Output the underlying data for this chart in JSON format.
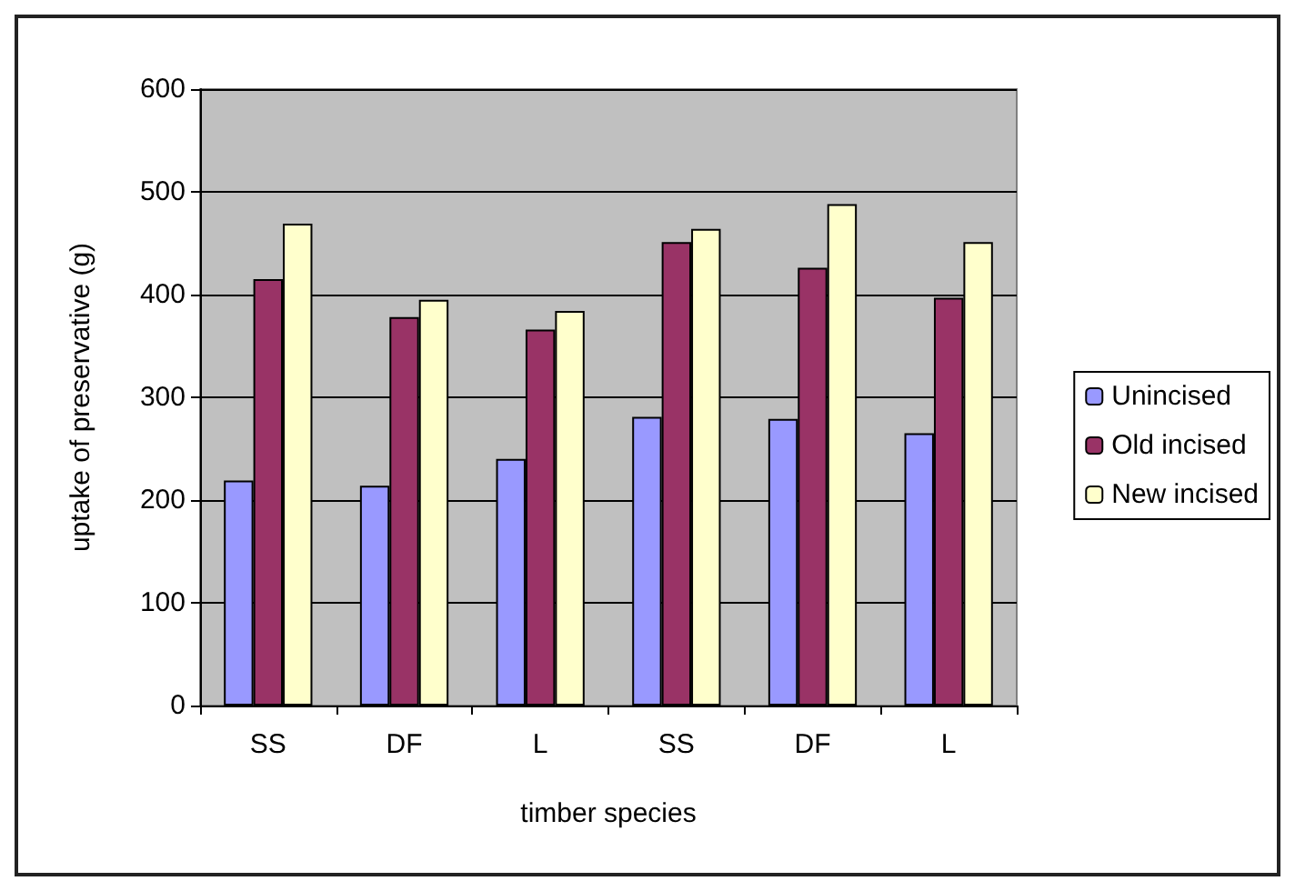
{
  "chart_data": {
    "type": "bar",
    "xlabel": "timber species",
    "ylabel": "uptake of preservative (g)",
    "categories": [
      "SS",
      "DF",
      "L",
      "SS",
      "DF",
      "L"
    ],
    "series": [
      {
        "name": "Unincised",
        "color": "#9999ff",
        "values": [
          219,
          214,
          240,
          281,
          279,
          265
        ]
      },
      {
        "name": "Old incised",
        "color": "#993366",
        "values": [
          415,
          378,
          366,
          451,
          426,
          397
        ]
      },
      {
        "name": "New incised",
        "color": "#ffffcc",
        "values": [
          469,
          395,
          384,
          464,
          488,
          451
        ]
      }
    ],
    "ylim": [
      0,
      600
    ],
    "yticks": [
      0,
      100,
      200,
      300,
      400,
      500,
      600
    ],
    "grid": "y",
    "legend": "right"
  }
}
